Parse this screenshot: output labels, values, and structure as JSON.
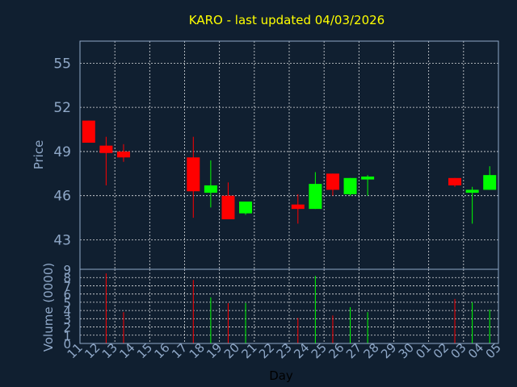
{
  "chart_data": {
    "type": "candlestick",
    "title": "KARO - last updated 04/03/2026",
    "xlabel": "Day",
    "price_ylabel": "Price",
    "volume_ylabel": "Volume (0000)",
    "x_ticks": [
      "11",
      "12",
      "13",
      "14",
      "15",
      "16",
      "17",
      "18",
      "19",
      "20",
      "21",
      "22",
      "23",
      "24",
      "25",
      "26",
      "27",
      "28",
      "29",
      "30",
      "01",
      "02",
      "03",
      "04",
      "05"
    ],
    "price_ylim": [
      41,
      56.5
    ],
    "price_yticks": [
      "43",
      "46",
      "49",
      "52",
      "55"
    ],
    "volume_ylim": [
      0,
      9
    ],
    "volume_yticks": [
      "0",
      "1",
      "2",
      "3",
      "4",
      "5",
      "6",
      "7",
      "8",
      "9"
    ],
    "colors": {
      "up": "#00ff00",
      "down": "#ff0000",
      "background": "#101f30",
      "title": "#ffff00",
      "axis_text": "#8fa8c8",
      "grid": "#ffffff",
      "frame": "#8fa8c8"
    },
    "series": [
      {
        "name": "ohlc",
        "candles": [
          {
            "day": "11",
            "open": 51.1,
            "high": 51.1,
            "low": 49.6,
            "close": 49.6,
            "volume": 0
          },
          {
            "day": "12",
            "open": 49.4,
            "high": 50.0,
            "low": 46.7,
            "close": 48.9,
            "volume": 8.5
          },
          {
            "day": "13",
            "open": 49.0,
            "high": 49.5,
            "low": 48.3,
            "close": 48.6,
            "volume": 3.8
          },
          {
            "day": "17",
            "open": 48.6,
            "high": 50.0,
            "low": 44.5,
            "close": 46.3,
            "volume": 7.7
          },
          {
            "day": "18",
            "open": 46.2,
            "high": 48.4,
            "low": 45.2,
            "close": 46.7,
            "volume": 5.6
          },
          {
            "day": "19",
            "open": 46.0,
            "high": 46.9,
            "low": 44.4,
            "close": 44.4,
            "volume": 4.9
          },
          {
            "day": "20",
            "open": 44.8,
            "high": 45.6,
            "low": 44.7,
            "close": 45.6,
            "volume": 4.9
          },
          {
            "day": "23",
            "open": 45.4,
            "high": 46.1,
            "low": 44.1,
            "close": 45.1,
            "volume": 3.1
          },
          {
            "day": "24",
            "open": 45.1,
            "high": 47.6,
            "low": 45.1,
            "close": 46.8,
            "volume": 8.2
          },
          {
            "day": "25",
            "open": 47.5,
            "high": 47.5,
            "low": 46.0,
            "close": 46.4,
            "volume": 3.4
          },
          {
            "day": "26",
            "open": 46.1,
            "high": 47.2,
            "low": 46.0,
            "close": 47.2,
            "volume": 4.4
          },
          {
            "day": "27",
            "open": 47.1,
            "high": 47.4,
            "low": 46.0,
            "close": 47.3,
            "volume": 3.8
          },
          {
            "day": "02",
            "open": 47.2,
            "high": 47.2,
            "low": 46.6,
            "close": 46.7,
            "volume": 5.4
          },
          {
            "day": "03",
            "open": 46.2,
            "high": 46.6,
            "low": 44.1,
            "close": 46.4,
            "volume": 5.0
          },
          {
            "day": "04",
            "open": 46.4,
            "high": 48.0,
            "low": 46.4,
            "close": 47.4,
            "volume": 4.1
          }
        ]
      }
    ]
  }
}
